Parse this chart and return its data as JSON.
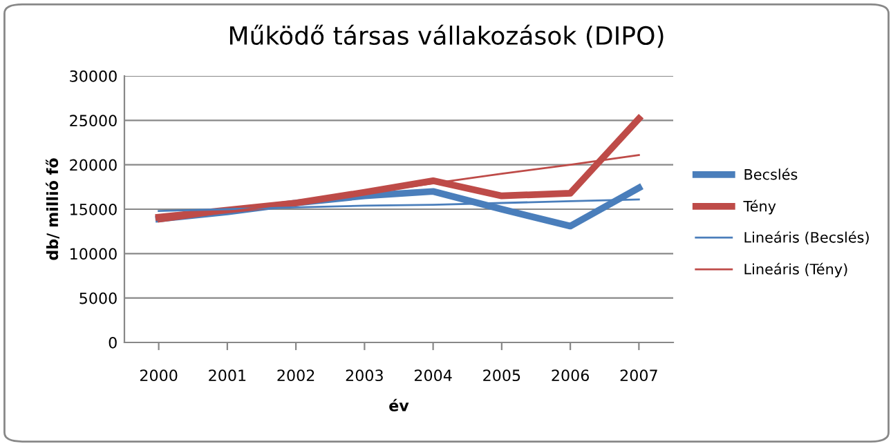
{
  "chart_data": {
    "type": "line",
    "title": "Működő társas vállakozások (DIPO)",
    "xlabel": "év",
    "ylabel": "db/ millió fő",
    "categories": [
      "2000",
      "2001",
      "2002",
      "2003",
      "2004",
      "2005",
      "2006",
      "2007"
    ],
    "series": [
      {
        "name": "Becslés",
        "color": "#4a7ebb",
        "values": [
          13900,
          14700,
          15700,
          16500,
          17000,
          15000,
          13100,
          17400
        ]
      },
      {
        "name": "Tény",
        "color": "#be4b48",
        "values": [
          14100,
          14900,
          15700,
          16900,
          18200,
          16500,
          16800,
          25200
        ]
      },
      {
        "name": "Lineáris (Becslés)",
        "color": "#4a7ebb",
        "values": [
          14800,
          15000,
          15200,
          15400,
          15500,
          15700,
          15900,
          16100
        ]
      },
      {
        "name": "Lineáris (Tény)",
        "color": "#be4b48",
        "values": [
          13600,
          14700,
          15700,
          16800,
          17900,
          19000,
          20000,
          21100
        ]
      }
    ],
    "ylim": [
      0,
      30000
    ],
    "yticks": [
      0,
      5000,
      10000,
      15000,
      20000,
      25000,
      30000
    ],
    "grid": "y",
    "legend": "right",
    "marker": "none",
    "line_style": "solid"
  }
}
